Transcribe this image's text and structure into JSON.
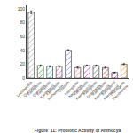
{
  "chart_data": {
    "type": "bar",
    "title": "Figure  11: Probiotic Activity of Anthocya",
    "categories": [
      "Lactobacillus\nQuercetin",
      "Kaempferol\nQuercetin",
      "Kaempferol\nKaempferol",
      "Kaempferol\nIsorhamnetin",
      "Cyanidin",
      "Kaempferol\nNaringenin",
      "Kaempferol\nKaempferol2",
      "Kaempferol\nDelphinidin",
      "Kaempferol\nKaempferol3",
      "Kaempferol\nKaempferol4",
      "Chlorogenic\nTheobromine"
    ],
    "values": [
      95,
      18,
      17,
      17,
      40,
      15,
      18,
      18,
      15,
      8,
      20
    ],
    "error_values": [
      2,
      0.8,
      0.8,
      0.8,
      1,
      0.8,
      0.8,
      0.8,
      0.8,
      0.5,
      0.8
    ],
    "colors": [
      "#aaaaaa",
      "#33cc33",
      "#33bbcc",
      "#dd55bb",
      "#8888ee",
      "#ff7777",
      "#cc44cc",
      "#777777",
      "#cc3333",
      "#dd55bb",
      "#ff9900"
    ],
    "ylim": [
      0,
      105
    ],
    "yticks": [
      0,
      20,
      40,
      60,
      80,
      100
    ],
    "grid": false
  }
}
